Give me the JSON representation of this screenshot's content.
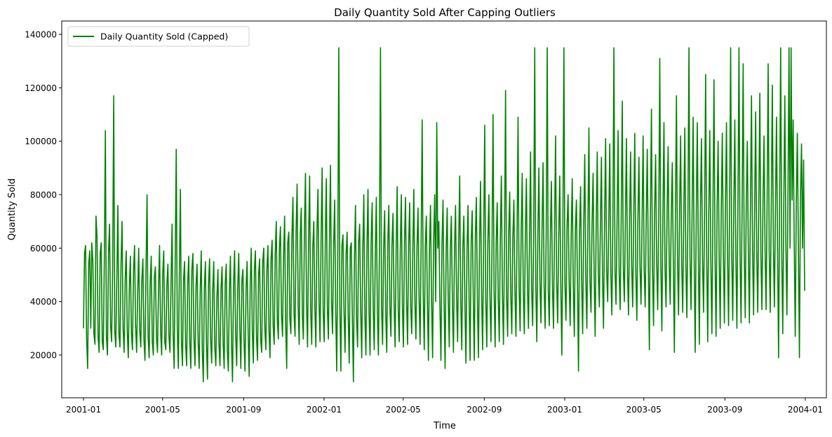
{
  "chart_data": {
    "type": "line",
    "title": "Daily Quantity Sold After Capping Outliers",
    "xlabel": "Time",
    "ylabel": "Quantity Sold",
    "xlim": [
      "2000-11-29",
      "2004-02-02"
    ],
    "ylim": [
      4000,
      145000
    ],
    "x_tick_labels": [
      "2001-01",
      "2001-05",
      "2001-09",
      "2002-01",
      "2002-05",
      "2002-09",
      "2003-01",
      "2003-05",
      "2003-09",
      "2004-01"
    ],
    "y_tick_labels": [
      "20000",
      "40000",
      "60000",
      "80000",
      "100000",
      "120000",
      "140000"
    ],
    "y_ticks": [
      20000,
      40000,
      60000,
      80000,
      100000,
      120000,
      140000
    ],
    "grid": false,
    "legend_position": "upper left",
    "colors": {
      "line": "#008000"
    },
    "series": [
      {
        "name": "Daily Quantity Sold (Capped)",
        "start_date": "2001-01-01",
        "end_date": "2003-12-31",
        "values": [
          30000,
          58000,
          61000,
          26000,
          15000,
          54000,
          59000,
          30000,
          62000,
          55000,
          28000,
          24000,
          72000,
          64000,
          27000,
          21000,
          58000,
          62000,
          25000,
          22000,
          56000,
          104000,
          27000,
          20000,
          58000,
          69000,
          31000,
          25000,
          53000,
          117000,
          29000,
          23000,
          49000,
          76000,
          28000,
          23000,
          54000,
          70000,
          30000,
          21000,
          48000,
          59000,
          29000,
          19000,
          45000,
          57000,
          28000,
          22000,
          51000,
          61000,
          31000,
          21000,
          43000,
          60000,
          29000,
          23000,
          48000,
          56000,
          26000,
          18000,
          52000,
          80000,
          27000,
          19000,
          47000,
          57000,
          25000,
          20000,
          49000,
          53000,
          27000,
          21000,
          45000,
          61000,
          29000,
          20000,
          50000,
          59000,
          25000,
          22000,
          46000,
          54000,
          27000,
          21000,
          47000,
          69000,
          28000,
          15000,
          55000,
          97000,
          30000,
          15000,
          51000,
          82000,
          25000,
          16000,
          48000,
          55000,
          24000,
          16000,
          47000,
          57000,
          25000,
          15000,
          52000,
          58000,
          26000,
          16000,
          46000,
          54000,
          25000,
          15000,
          44000,
          59000,
          22000,
          10000,
          45000,
          55000,
          24000,
          11000,
          47000,
          56000,
          26000,
          17000,
          44000,
          55000,
          23000,
          16000,
          41000,
          52000,
          24000,
          16000,
          45000,
          53000,
          25000,
          15000,
          47000,
          54000,
          22000,
          14000,
          44000,
          57000,
          25000,
          10000,
          46000,
          59000,
          28000,
          16000,
          45000,
          58000,
          30000,
          15000,
          48000,
          52000,
          26000,
          14000,
          45000,
          55000,
          28000,
          12000,
          47000,
          60000,
          29000,
          17000,
          52000,
          59000,
          27000,
          18000,
          50000,
          56000,
          26000,
          21000,
          55000,
          60000,
          30000,
          22000,
          52000,
          61000,
          29000,
          19000,
          56000,
          63000,
          31000,
          24000,
          58000,
          70000,
          33000,
          26000,
          60000,
          68000,
          35000,
          27000,
          57000,
          72000,
          32000,
          15000,
          62000,
          66000,
          34000,
          28000,
          64000,
          79000,
          36000,
          27000,
          66000,
          84000,
          38000,
          24000,
          65000,
          75000,
          35000,
          26000,
          67000,
          88000,
          39000,
          23000,
          63000,
          87000,
          37000,
          24000,
          60000,
          70000,
          38000,
          23000,
          66000,
          82000,
          40000,
          25000,
          64000,
          90000,
          36000,
          25000,
          62000,
          86000,
          38000,
          26000,
          62000,
          91000,
          40000,
          28000,
          60000,
          78000,
          37000,
          14000,
          57000,
          135000,
          38000,
          14000,
          61000,
          65000,
          36000,
          21000,
          58000,
          66000,
          35000,
          17000,
          60000,
          62000,
          34000,
          10000,
          56000,
          76000,
          34000,
          23000,
          62000,
          69000,
          37000,
          19000,
          59000,
          80000,
          35000,
          20000,
          60000,
          82000,
          36000,
          20000,
          62000,
          77000,
          38000,
          22000,
          58000,
          79000,
          36000,
          20000,
          61000,
          135000,
          38000,
          24000,
          60000,
          74000,
          36000,
          21000,
          62000,
          76000,
          38000,
          27000,
          61000,
          73000,
          40000,
          23000,
          59000,
          83000,
          37000,
          25000,
          60000,
          80000,
          39000,
          23000,
          62000,
          79000,
          41000,
          24000,
          61000,
          77000,
          38000,
          28000,
          59000,
          82000,
          40000,
          26000,
          60000,
          75000,
          42000,
          24000,
          62000,
          108000,
          43000,
          22000,
          61000,
          72000,
          40000,
          18000,
          60000,
          76000,
          41000,
          19000,
          62000,
          80000,
          40000,
          107000,
          60000,
          70000,
          39000,
          18000,
          61000,
          78000,
          40000,
          15000,
          59000,
          75000,
          41000,
          23000,
          60000,
          72000,
          40000,
          21000,
          59000,
          76000,
          42000,
          25000,
          61000,
          87000,
          40000,
          22000,
          60000,
          72000,
          39000,
          17000,
          59000,
          76000,
          41000,
          18000,
          62000,
          74000,
          42000,
          18000,
          64000,
          79000,
          40000,
          19000,
          61000,
          85000,
          43000,
          22000,
          63000,
          106000,
          41000,
          23000,
          62000,
          80000,
          42000,
          25000,
          60000,
          110000,
          44000,
          23000,
          62000,
          77000,
          41000,
          25000,
          64000,
          87000,
          43000,
          24000,
          62000,
          119000,
          42000,
          27000,
          65000,
          81000,
          43000,
          28000,
          64000,
          78000,
          44000,
          27000,
          63000,
          109000,
          45000,
          29000,
          66000,
          88000,
          44000,
          28000,
          65000,
          86000,
          46000,
          30000,
          64000,
          96000,
          45000,
          31000,
          66000,
          135000,
          46000,
          25000,
          65000,
          90000,
          47000,
          32000,
          67000,
          92000,
          46000,
          30000,
          66000,
          135000,
          44000,
          31000,
          65000,
          85000,
          46000,
          30000,
          67000,
          102000,
          48000,
          32000,
          64000,
          87000,
          47000,
          20000,
          66000,
          135000,
          46000,
          33000,
          68000,
          80000,
          48000,
          31000,
          65000,
          86000,
          46000,
          27000,
          67000,
          78000,
          47000,
          14000,
          66000,
          83000,
          48000,
          28000,
          68000,
          95000,
          49000,
          30000,
          67000,
          105000,
          48000,
          36000,
          69000,
          88000,
          50000,
          27000,
          70000,
          96000,
          51000,
          38000,
          68000,
          94000,
          50000,
          30000,
          70000,
          101000,
          52000,
          40000,
          69000,
          99000,
          51000,
          35000,
          71000,
          135000,
          52000,
          39000,
          70000,
          104000,
          51000,
          37000,
          72000,
          115000,
          53000,
          40000,
          71000,
          101000,
          52000,
          35000,
          70000,
          96000,
          54000,
          38000,
          72000,
          103000,
          51000,
          33000,
          71000,
          94000,
          53000,
          39000,
          70000,
          102000,
          52000,
          38000,
          71000,
          97000,
          54000,
          22000,
          72000,
          112000,
          53000,
          31000,
          73000,
          95000,
          55000,
          37000,
          71000,
          131000,
          54000,
          29000,
          72000,
          107000,
          53000,
          38000,
          73000,
          98000,
          55000,
          39000,
          72000,
          92000,
          54000,
          21000,
          73000,
          117000,
          56000,
          35000,
          74000,
          102000,
          55000,
          36000,
          72000,
          105000,
          54000,
          34000,
          73000,
          135000,
          56000,
          37000,
          74000,
          109000,
          55000,
          21000,
          73000,
          107000,
          57000,
          24000,
          75000,
          101000,
          56000,
          36000,
          74000,
          125000,
          57000,
          25000,
          73000,
          104000,
          55000,
          28000,
          74000,
          123000,
          57000,
          27000,
          75000,
          100000,
          56000,
          30000,
          74000,
          103000,
          58000,
          32000,
          76000,
          107000,
          57000,
          31000,
          75000,
          135000,
          59000,
          33000,
          74000,
          108000,
          57000,
          30000,
          76000,
          135000,
          58000,
          32000,
          75000,
          129000,
          59000,
          34000,
          77000,
          100000,
          58000,
          32000,
          76000,
          117000,
          60000,
          35000,
          75000,
          111000,
          59000,
          36000,
          77000,
          118000,
          58000,
          37000,
          76000,
          102000,
          60000,
          37000,
          78000,
          129000,
          59000,
          36000,
          77000,
          121000,
          61000,
          38000,
          76000,
          109000,
          60000,
          19000,
          78000,
          135000,
          59000,
          28000,
          77000,
          117000,
          61000,
          35000,
          79000,
          135000,
          60000,
          135000,
          78000,
          108000,
          62000,
          27000,
          77000,
          103000,
          61000,
          19000,
          79000,
          99000,
          60000,
          93000,
          44000
        ]
      }
    ]
  }
}
